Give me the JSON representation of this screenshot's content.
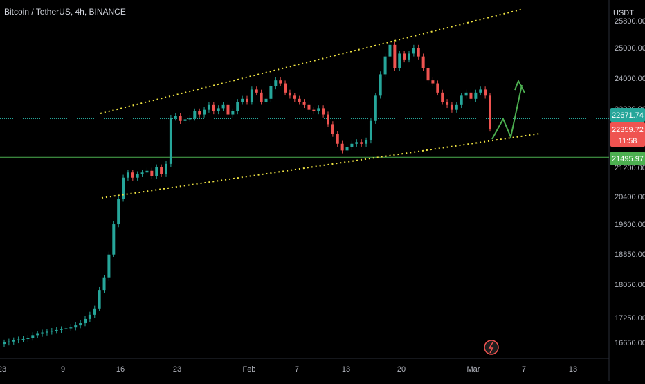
{
  "title": "Bitcoin / TetherUS, 4h, BINANCE",
  "chart_data": {
    "type": "candlestick",
    "title": "Bitcoin / TetherUS, 4h, BINANCE",
    "currency_label": "USDT",
    "y_scale": "log",
    "y_ticks": [
      "25800.00",
      "25000.00",
      "24000.00",
      "23000.00",
      "21200.00",
      "20400.00",
      "19600.00",
      "18850.00",
      "18050.00",
      "17250.00",
      "16650.00"
    ],
    "x_ticks": [
      "23",
      "9",
      "16",
      "23",
      "Feb",
      "7",
      "13",
      "20",
      "Mar",
      "7",
      "13"
    ],
    "price_labels": {
      "green": "22671.74",
      "red": "22359.72",
      "countdown": "11:58",
      "support": "21495.97"
    },
    "support_level": 21495.97,
    "dotted_level": 22671.74,
    "close_series": [
      16650,
      16670,
      16700,
      16720,
      16730,
      16760,
      16820,
      16850,
      16880,
      16900,
      16920,
      16940,
      16960,
      16980,
      17000,
      17050,
      17100,
      17200,
      17300,
      17450,
      17900,
      18200,
      18800,
      19600,
      20300,
      20900,
      21050,
      20900,
      21000,
      21050,
      21100,
      20950,
      21200,
      21000,
      21300,
      22700,
      22750,
      22600,
      22650,
      22700,
      22900,
      22800,
      22950,
      23100,
      22900,
      23000,
      23100,
      22800,
      22900,
      23200,
      23300,
      23200,
      23600,
      23500,
      23200,
      23300,
      23700,
      23900,
      23800,
      23500,
      23400,
      23300,
      23200,
      23100,
      22950,
      22900,
      23000,
      22800,
      22500,
      22200,
      21900,
      21700,
      21800,
      21900,
      21950,
      21900,
      22000,
      22600,
      23400,
      24100,
      24700,
      25100,
      24300,
      24800,
      24600,
      24800,
      25000,
      24700,
      24300,
      23900,
      23800,
      23500,
      23200,
      23100,
      22950,
      23100,
      23400,
      23500,
      23300,
      23500,
      23600,
      23400,
      22359.72
    ],
    "colors": {
      "up": "#26a69a",
      "down": "#ef5350",
      "background": "#000000",
      "grid": "#2a2e39",
      "channel": "#f0e442",
      "projection": "#4caf50"
    }
  }
}
